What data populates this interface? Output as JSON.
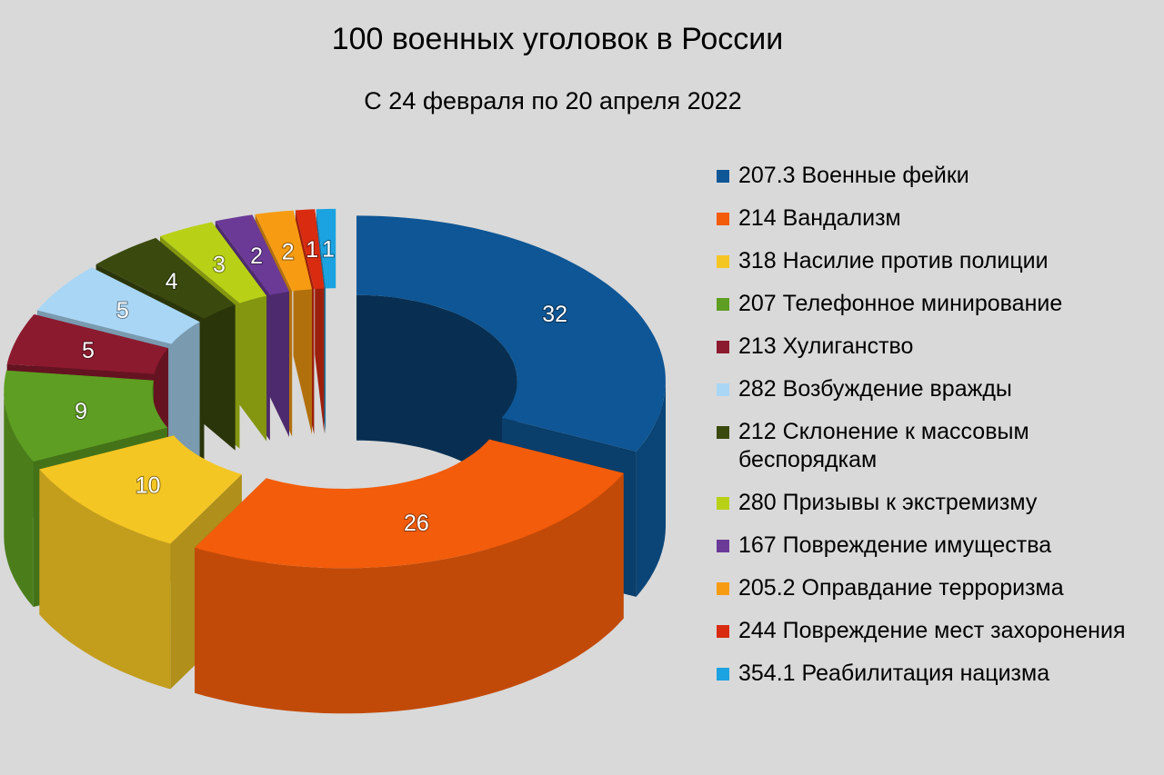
{
  "chart_data": {
    "type": "pie",
    "variant": "3d-donut-exploded",
    "title": "100 военных уголовок в России",
    "subtitle": "С 24 февраля по 20 апреля 2022",
    "legend_position": "right",
    "slices": [
      {
        "legend": "207.3 Военные фейки",
        "value": 32,
        "color": "#0e5695"
      },
      {
        "legend": "214 Вандализм",
        "value": 26,
        "color": "#f25c0a"
      },
      {
        "legend": "318 Насилие против полиции",
        "value": 10,
        "color": "#f4c624"
      },
      {
        "legend": "207 Телефонное минирование",
        "value": 9,
        "color": "#5e9e22"
      },
      {
        "legend": "213 Хулиганство",
        "value": 5,
        "color": "#8c1a2e"
      },
      {
        "legend": "282 Возбуждение вражды",
        "value": 5,
        "color": "#a9d6f5"
      },
      {
        "legend": "212 Склонение к массовым беспорядкам",
        "value": 4,
        "color": "#3a4a0e"
      },
      {
        "legend": "280 Призывы к экстремизму",
        "value": 3,
        "color": "#b8d016"
      },
      {
        "legend": "167 Повреждение имущества",
        "value": 2,
        "color": "#6b3a97"
      },
      {
        "legend": "205.2 Оправдание терроризма",
        "value": 2,
        "color": "#f79c12"
      },
      {
        "legend": "244 Повреждение мест захоронения",
        "value": 1,
        "color": "#d82b10"
      },
      {
        "legend": "354.1 Реабилитация нацизма",
        "value": 1,
        "color": "#1ba2e0"
      }
    ]
  }
}
